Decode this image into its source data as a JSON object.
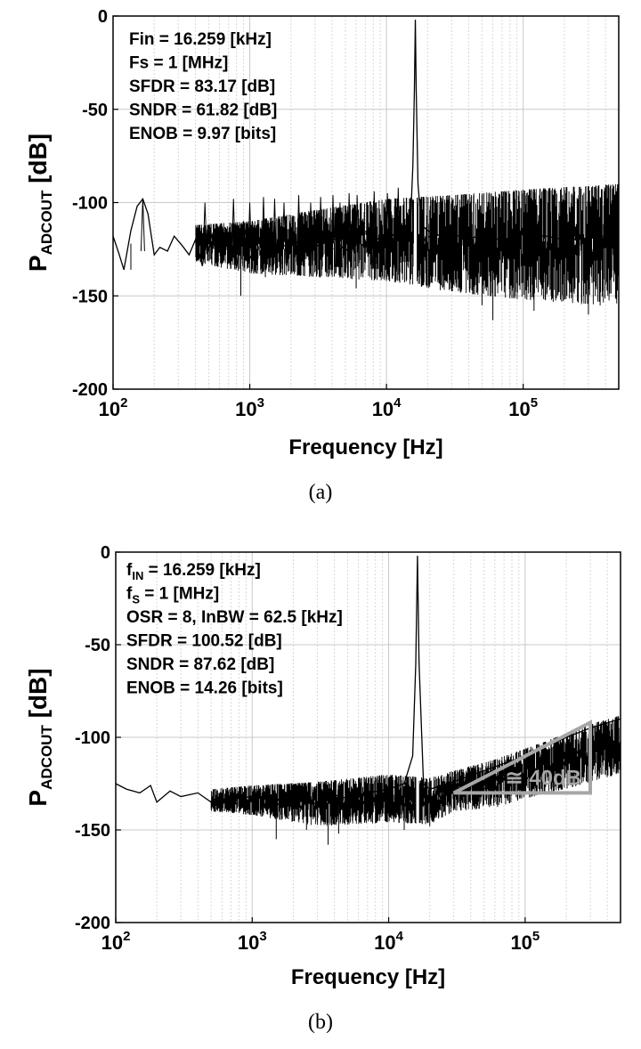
{
  "chart_data": [
    {
      "type": "line",
      "panel_caption": "(a)",
      "xlabel": "Frequency [Hz]",
      "ylabel_main": "P",
      "ylabel_sub": "ADCOUT",
      "ylabel_unit": " [dB]",
      "xscale": "log",
      "xlim": [
        100,
        500000
      ],
      "ylim": [
        -200,
        0
      ],
      "yticks": [
        0,
        -50,
        -100,
        -150,
        -200
      ],
      "xticks": [
        100,
        1000,
        10000,
        100000
      ],
      "xtick_labels": [
        {
          "base": "10",
          "exp": "2"
        },
        {
          "base": "10",
          "exp": "3"
        },
        {
          "base": "10",
          "exp": "4"
        },
        {
          "base": "10",
          "exp": "5"
        }
      ],
      "grid": true,
      "annotations": [
        {
          "main": "Fin = 16.259 [kHz]"
        },
        {
          "main": "Fs = 1 [MHz]"
        },
        {
          "main": "SFDR = 83.17 [dB]"
        },
        {
          "main": "SNDR = 61.82 [dB]"
        },
        {
          "main": "ENOB = 9.97 [bits]"
        }
      ],
      "series": [
        {
          "x": [
            100,
            110,
            120,
            135,
            150,
            165,
            180,
            200,
            220,
            250,
            280,
            320,
            360,
            400,
            450,
            500,
            560,
            630,
            700,
            800,
            900,
            1000,
            1200,
            1500,
            2000,
            2500,
            3000,
            4000,
            5000,
            6000,
            7000,
            8000,
            9000,
            10000,
            11000,
            12000,
            13000,
            14000,
            15000,
            15600,
            16000,
            16259,
            16500,
            17000,
            18000,
            20000,
            25000,
            30000,
            40000,
            50000,
            70000,
            100000,
            150000,
            200000,
            300000,
            400000,
            500000
          ],
          "y": [
            -118,
            -127,
            -136,
            -115,
            -102,
            -98,
            -106,
            -128,
            -124,
            -126,
            -118,
            -123,
            -128,
            -120,
            -134,
            -112,
            -125,
            -124,
            -118,
            -135,
            -110,
            -130,
            -118,
            -125,
            -122,
            -120,
            -124,
            -118,
            -126,
            -120,
            -124,
            -118,
            -120,
            -116,
            -118,
            -115,
            -117,
            -112,
            -110,
            -80,
            -40,
            -2,
            -40,
            -90,
            -112,
            -115,
            -118,
            -117,
            -119,
            -118,
            -120,
            -117,
            -118,
            -120,
            -119,
            -118,
            -121
          ],
          "envelope_start_x": 400,
          "envelope_upper": [
            [
              400,
              -112
            ],
            [
              1000,
              -110
            ],
            [
              3000,
              -104
            ],
            [
              10000,
              -98
            ],
            [
              30000,
              -96
            ],
            [
              100000,
              -93
            ],
            [
              500000,
              -90
            ]
          ],
          "envelope_lower": [
            [
              400,
              -132
            ],
            [
              1000,
              -138
            ],
            [
              3000,
              -140
            ],
            [
              10000,
              -142
            ],
            [
              30000,
              -148
            ],
            [
              100000,
              -152
            ],
            [
              500000,
              -156
            ]
          ],
          "spurs": [
            [
              165,
              -98
            ],
            [
              470,
              -100
            ],
            [
              760,
              -98
            ],
            [
              1000,
              -100
            ],
            [
              1260,
              -97
            ],
            [
              1520,
              -98
            ],
            [
              1780,
              -100
            ],
            [
              2280,
              -96
            ],
            [
              2790,
              -100
            ],
            [
              3300,
              -97
            ],
            [
              4060,
              -96
            ],
            [
              4570,
              -100
            ],
            [
              5330,
              -95
            ],
            [
              6100,
              -96
            ],
            [
              8130,
              -94
            ],
            [
              10160,
              -95
            ],
            [
              12190,
              -92
            ]
          ],
          "dips": [
            [
              135,
              -136
            ],
            [
              860,
              -150
            ],
            [
              1300,
              -140
            ],
            [
              6000,
              -146
            ],
            [
              18000,
              -145
            ],
            [
              50000,
              -155
            ],
            [
              60000,
              -163
            ],
            [
              120000,
              -158
            ],
            [
              300000,
              -160
            ]
          ]
        }
      ]
    },
    {
      "type": "line",
      "panel_caption": "(b)",
      "xlabel": "Frequency [Hz]",
      "ylabel_main": "P",
      "ylabel_sub": "ADCOUT",
      "ylabel_unit": " [dB]",
      "xscale": "log",
      "xlim": [
        100,
        500000
      ],
      "ylim": [
        -200,
        0
      ],
      "yticks": [
        0,
        -50,
        -100,
        -150,
        -200
      ],
      "xticks": [
        100,
        1000,
        10000,
        100000
      ],
      "xtick_labels": [
        {
          "base": "10",
          "exp": "2"
        },
        {
          "base": "10",
          "exp": "3"
        },
        {
          "base": "10",
          "exp": "4"
        },
        {
          "base": "10",
          "exp": "5"
        }
      ],
      "grid": true,
      "annotations": [
        {
          "main": "f",
          "sub": "IN",
          "rest": " = 16.259 [kHz]"
        },
        {
          "main": "f",
          "sub": "S",
          "rest": " = 1 [MHz]"
        },
        {
          "main": "OSR = 8, InBW = 62.5 [kHz]"
        },
        {
          "main": "SFDR = 100.52 [dB]"
        },
        {
          "main": "SNDR = 87.62 [dB]"
        },
        {
          "main": "ENOB = 14.26 [bits]"
        }
      ],
      "slope_annotation": {
        "label": "≅ 40dB",
        "color": "#a6a6a6",
        "points": [
          [
            30000,
            -130
          ],
          [
            300000,
            -92
          ],
          [
            300000,
            -130
          ]
        ]
      },
      "series": [
        {
          "x": [
            100,
            120,
            150,
            180,
            200,
            250,
            300,
            400,
            500,
            700,
            1000,
            1500,
            2000,
            3000,
            4000,
            5000,
            7000,
            10000,
            13000,
            15000,
            15800,
            16259,
            16700,
            18000,
            20000,
            30000,
            50000,
            100000,
            200000,
            300000,
            500000
          ],
          "y": [
            -125,
            -128,
            -130,
            -126,
            -135,
            -129,
            -132,
            -130,
            -135,
            -133,
            -132,
            -134,
            -133,
            -136,
            -131,
            -133,
            -130,
            -128,
            -125,
            -110,
            -60,
            -2,
            -60,
            -125,
            -128,
            -124,
            -118,
            -110,
            -100,
            -95,
            -90
          ],
          "envelope_start_x": 500,
          "envelope_upper": [
            [
              500,
              -128
            ],
            [
              1000,
              -126
            ],
            [
              3000,
              -124
            ],
            [
              10000,
              -120
            ],
            [
              20000,
              -122
            ],
            [
              30000,
              -118
            ],
            [
              60000,
              -112
            ],
            [
              100000,
              -106
            ],
            [
              200000,
              -98
            ],
            [
              300000,
              -93
            ],
            [
              500000,
              -88
            ]
          ],
          "envelope_lower": [
            [
              500,
              -140
            ],
            [
              1000,
              -142
            ],
            [
              3000,
              -148
            ],
            [
              10000,
              -146
            ],
            [
              20000,
              -147
            ],
            [
              30000,
              -140
            ],
            [
              60000,
              -138
            ],
            [
              100000,
              -133
            ],
            [
              200000,
              -128
            ],
            [
              300000,
              -124
            ],
            [
              500000,
              -120
            ]
          ],
          "spurs": [],
          "dips": [
            [
              1500,
              -155
            ],
            [
              2500,
              -150
            ],
            [
              3600,
              -158
            ],
            [
              4300,
              -152
            ],
            [
              13000,
              -150
            ],
            [
              20000,
              -148
            ]
          ]
        }
      ]
    }
  ]
}
